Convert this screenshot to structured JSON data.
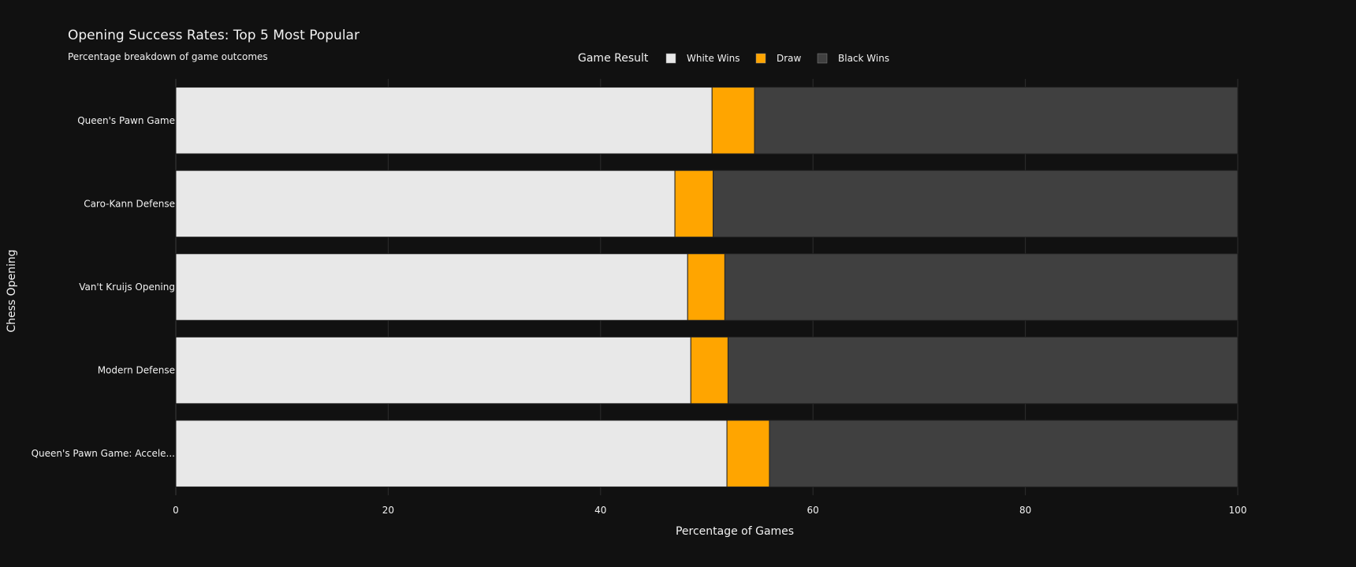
{
  "chart_data": {
    "type": "bar",
    "orientation": "horizontal",
    "barmode": "stack",
    "title": "Opening Success Rates: Top 5 Most Popular",
    "subtitle": "Percentage breakdown of game outcomes",
    "xlabel": "Percentage of Games",
    "ylabel": "Chess Opening",
    "xlim": [
      0,
      100
    ],
    "xticks": [
      0,
      20,
      40,
      60,
      80,
      100
    ],
    "grid": true,
    "legend": {
      "title": "Game Result",
      "placement": "top-center"
    },
    "categories": [
      "Queen's Pawn Game",
      "Caro-Kann Defense",
      "Van't Kruijs Opening",
      "Modern Defense",
      "Queen's Pawn Game: Accele..."
    ],
    "series": [
      {
        "name": "White Wins",
        "color": "#e8e8e8",
        "values": [
          50.5,
          47.0,
          48.2,
          48.5,
          51.9
        ]
      },
      {
        "name": "Draw",
        "color": "#ffa500",
        "values": [
          4.0,
          3.6,
          3.5,
          3.5,
          4.0
        ]
      },
      {
        "name": "Black Wins",
        "color": "#404040",
        "values": [
          45.5,
          49.4,
          48.3,
          48.0,
          44.1
        ]
      }
    ]
  },
  "colors": {
    "background": "#111111",
    "text": "#f2f2f2",
    "grid": "#2e2e2e"
  }
}
